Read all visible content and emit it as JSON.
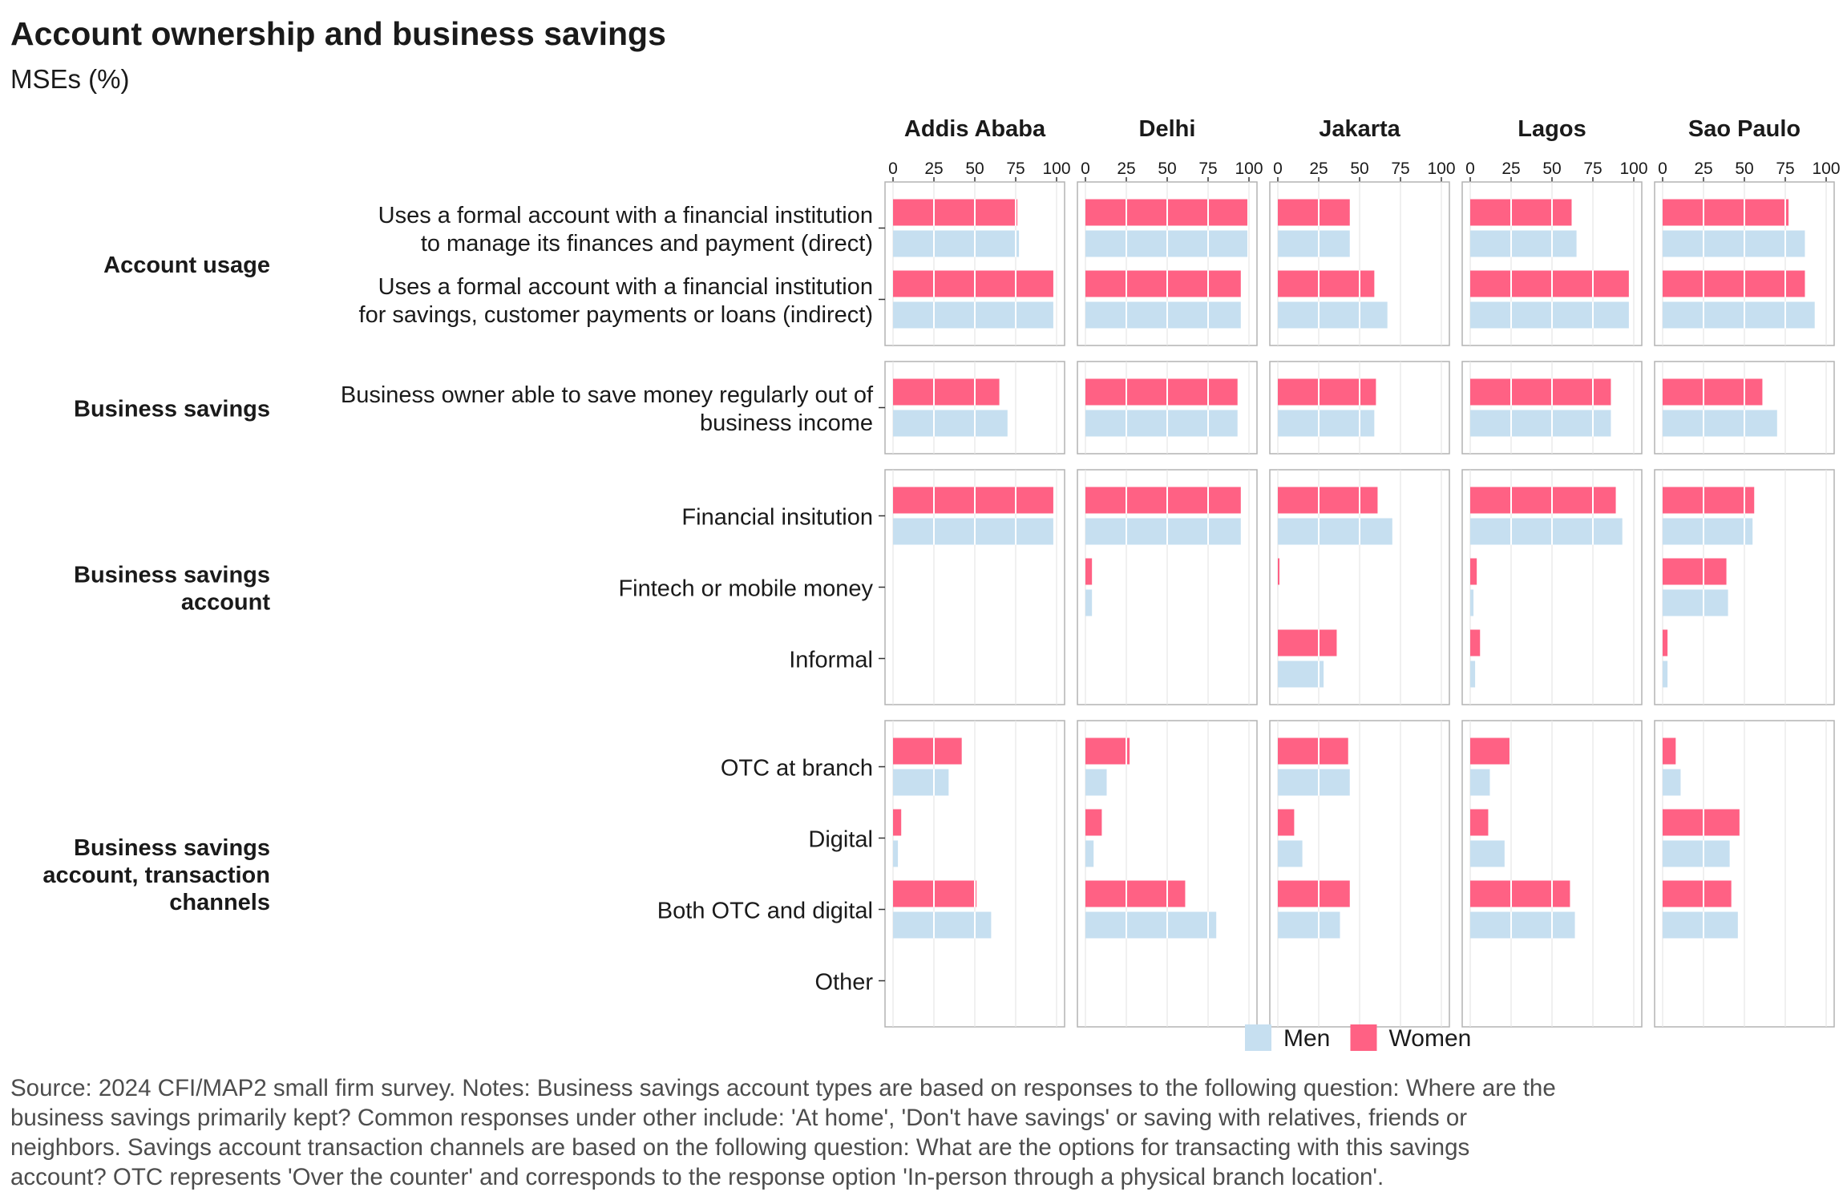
{
  "chart_data": {
    "type": "bar",
    "title": "Account ownership and business savings",
    "subtitle": "MSEs (%)",
    "caption_lines": [
      "Source: 2024 CFI/MAP2 small firm survey. Notes: Business savings account types are based on responses to the following question: Where are the",
      "business savings primarily kept? Common responses under other include: 'At home', 'Don't have savings' or saving with relatives, friends or",
      "neighbors. Savings account transaction channels are based on the following question: What are the options for transacting with this savings",
      "account? OTC represents 'Over the counter' and corresponds to the response option 'In-person through a physical branch location'."
    ],
    "xlim": [
      0,
      100
    ],
    "x_ticks": [
      0,
      25,
      50,
      75,
      100
    ],
    "grid": true,
    "legend_position": "bottom",
    "colors": {
      "Men": "#c6dff0",
      "Women": "#ff6184"
    },
    "facets": [
      "Addis Ababa",
      "Delhi",
      "Jakarta",
      "Lagos",
      "Sao Paulo"
    ],
    "series": [
      {
        "name": "Men",
        "color": "#c6dff0"
      },
      {
        "name": "Women",
        "color": "#ff6184"
      }
    ],
    "groups": [
      {
        "label_lines": [
          "Account usage"
        ],
        "categories": [
          {
            "label_lines": [
              "Uses a formal account with a financial institution",
              "to manage its finances and payment (direct)"
            ],
            "values": {
              "Addis Ababa": {
                "Women": 76,
                "Men": 77
              },
              "Delhi": {
                "Women": 99,
                "Men": 99
              },
              "Jakarta": {
                "Women": 44,
                "Men": 44
              },
              "Lagos": {
                "Women": 62,
                "Men": 65
              },
              "Sao Paulo": {
                "Women": 77,
                "Men": 87
              }
            }
          },
          {
            "label_lines": [
              "Uses a formal account with a financial institution",
              "for savings, customer payments or loans (indirect)"
            ],
            "values": {
              "Addis Ababa": {
                "Women": 98,
                "Men": 98
              },
              "Delhi": {
                "Women": 95,
                "Men": 95
              },
              "Jakarta": {
                "Women": 59,
                "Men": 67
              },
              "Lagos": {
                "Women": 97,
                "Men": 97
              },
              "Sao Paulo": {
                "Women": 87,
                "Men": 93
              }
            }
          }
        ]
      },
      {
        "label_lines": [
          "Business savings"
        ],
        "categories": [
          {
            "label_lines": [
              "Business owner able to save money regularly out of",
              "business income"
            ],
            "values": {
              "Addis Ababa": {
                "Women": 65,
                "Men": 70
              },
              "Delhi": {
                "Women": 93,
                "Men": 93
              },
              "Jakarta": {
                "Women": 60,
                "Men": 59
              },
              "Lagos": {
                "Women": 86,
                "Men": 86
              },
              "Sao Paulo": {
                "Women": 61,
                "Men": 70
              }
            }
          }
        ]
      },
      {
        "label_lines": [
          "Business savings",
          "account"
        ],
        "categories": [
          {
            "label_lines": [
              "Financial insitution"
            ],
            "values": {
              "Addis Ababa": {
                "Women": 98,
                "Men": 98
              },
              "Delhi": {
                "Women": 95,
                "Men": 95
              },
              "Jakarta": {
                "Women": 61,
                "Men": 70
              },
              "Lagos": {
                "Women": 89,
                "Men": 93
              },
              "Sao Paulo": {
                "Women": 56,
                "Men": 55
              }
            }
          },
          {
            "label_lines": [
              "Fintech or mobile money"
            ],
            "values": {
              "Addis Ababa": {
                "Women": 0,
                "Men": 0
              },
              "Delhi": {
                "Women": 4,
                "Men": 4
              },
              "Jakarta": {
                "Women": 1,
                "Men": 0
              },
              "Lagos": {
                "Women": 4,
                "Men": 2
              },
              "Sao Paulo": {
                "Women": 39,
                "Men": 40
              }
            }
          },
          {
            "label_lines": [
              "Informal"
            ],
            "values": {
              "Addis Ababa": {
                "Women": 0,
                "Men": 0
              },
              "Delhi": {
                "Women": 0,
                "Men": 0
              },
              "Jakarta": {
                "Women": 36,
                "Men": 28
              },
              "Lagos": {
                "Women": 6,
                "Men": 3
              },
              "Sao Paulo": {
                "Women": 3,
                "Men": 3
              }
            }
          }
        ]
      },
      {
        "label_lines": [
          "Business savings",
          "account, transaction",
          "channels"
        ],
        "categories": [
          {
            "label_lines": [
              "OTC at branch"
            ],
            "values": {
              "Addis Ababa": {
                "Women": 42,
                "Men": 34
              },
              "Delhi": {
                "Women": 27,
                "Men": 13
              },
              "Jakarta": {
                "Women": 43,
                "Men": 44
              },
              "Lagos": {
                "Women": 24,
                "Men": 12
              },
              "Sao Paulo": {
                "Women": 8,
                "Men": 11
              }
            }
          },
          {
            "label_lines": [
              "Digital"
            ],
            "values": {
              "Addis Ababa": {
                "Women": 5,
                "Men": 3
              },
              "Delhi": {
                "Women": 10,
                "Men": 5
              },
              "Jakarta": {
                "Women": 10,
                "Men": 15
              },
              "Lagos": {
                "Women": 11,
                "Men": 21
              },
              "Sao Paulo": {
                "Women": 47,
                "Men": 41
              }
            }
          },
          {
            "label_lines": [
              "Both OTC and digital"
            ],
            "values": {
              "Addis Ababa": {
                "Women": 51,
                "Men": 60
              },
              "Delhi": {
                "Women": 61,
                "Men": 80
              },
              "Jakarta": {
                "Women": 44,
                "Men": 38
              },
              "Lagos": {
                "Women": 61,
                "Men": 64
              },
              "Sao Paulo": {
                "Women": 42,
                "Men": 46
              }
            }
          },
          {
            "label_lines": [
              "Other"
            ],
            "values": {
              "Addis Ababa": {
                "Women": 0,
                "Men": 0
              },
              "Delhi": {
                "Women": 0,
                "Men": 0
              },
              "Jakarta": {
                "Women": 0,
                "Men": 0
              },
              "Lagos": {
                "Women": 0,
                "Men": 0
              },
              "Sao Paulo": {
                "Women": 0,
                "Men": 0
              }
            }
          }
        ]
      }
    ]
  }
}
